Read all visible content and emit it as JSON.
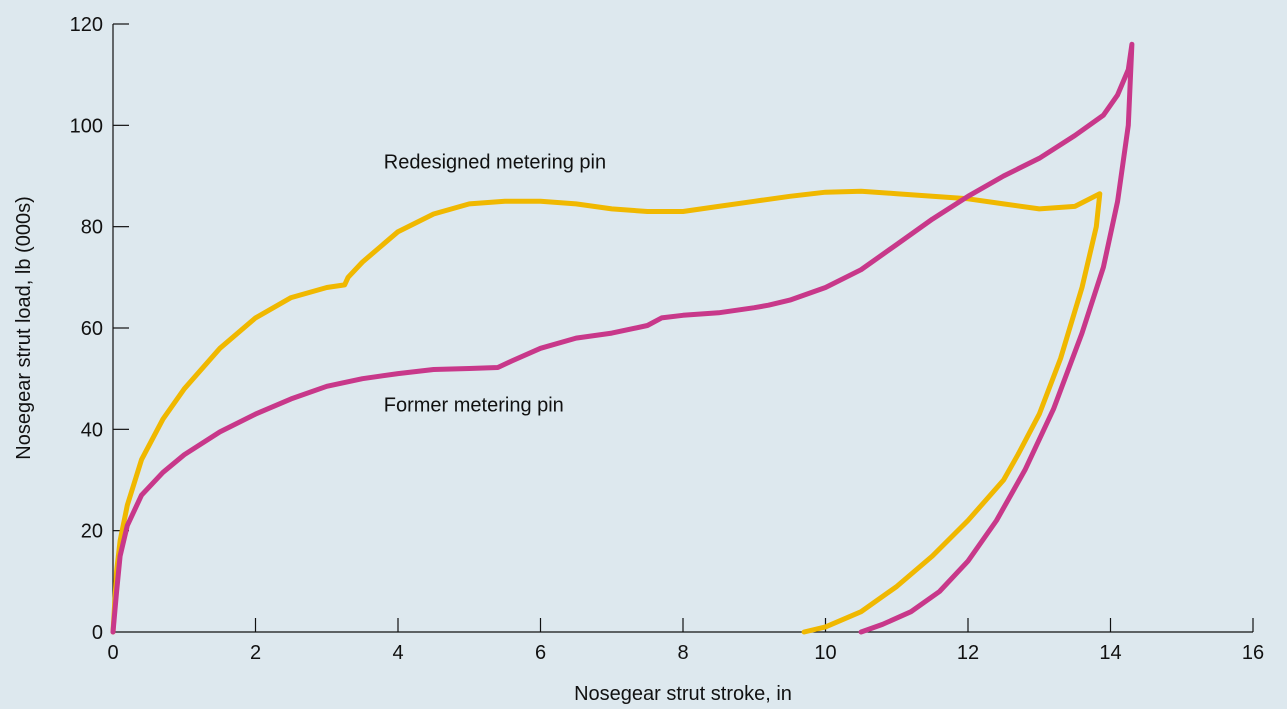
{
  "chart_data": {
    "type": "line",
    "title": "",
    "xlabel": "Nosegear strut stroke, in",
    "ylabel": "Nosegear strut load, lb (000s)",
    "xlim": [
      0,
      16
    ],
    "ylim": [
      0,
      120
    ],
    "xticks": [
      0,
      2,
      4,
      6,
      8,
      10,
      12,
      14,
      16
    ],
    "yticks": [
      0,
      20,
      40,
      60,
      80,
      100,
      120
    ],
    "grid": false,
    "legend": "none",
    "series": [
      {
        "name": "Redesigned metering pin",
        "color": "#f0b800",
        "x": [
          0,
          0.05,
          0.1,
          0.2,
          0.4,
          0.7,
          1.0,
          1.5,
          2.0,
          2.5,
          3.0,
          3.25,
          3.3,
          3.5,
          4.0,
          4.5,
          5.0,
          5.5,
          6.0,
          6.5,
          7.0,
          7.5,
          8.0,
          8.5,
          9.0,
          9.5,
          10.0,
          10.5,
          11.0,
          11.5,
          12.0,
          12.5,
          13.0,
          13.5,
          13.85,
          13.8,
          13.6,
          13.3,
          13.0,
          12.7,
          12.5,
          12.0,
          11.5,
          11.0,
          10.5,
          10.0,
          9.7
        ],
        "y": [
          0,
          12,
          18,
          25,
          34,
          42,
          48,
          56,
          62,
          66,
          68,
          68.5,
          70,
          73,
          79,
          82.5,
          84.5,
          85,
          85,
          84.5,
          83.5,
          83,
          83,
          84,
          85,
          86,
          86.8,
          87,
          86.5,
          86,
          85.5,
          84.5,
          83.5,
          84,
          86.5,
          80,
          68,
          54,
          43,
          35,
          30,
          22,
          15,
          9,
          4,
          1,
          0
        ]
      },
      {
        "name": "Former metering pin",
        "color": "#c8388a",
        "x": [
          0,
          0.05,
          0.1,
          0.2,
          0.4,
          0.7,
          1.0,
          1.5,
          2.0,
          2.5,
          3.0,
          3.5,
          4.0,
          4.5,
          5.0,
          5.4,
          5.6,
          6.0,
          6.5,
          7.0,
          7.5,
          7.7,
          8.0,
          8.5,
          9.0,
          9.2,
          9.5,
          10.0,
          10.5,
          11.0,
          11.5,
          12.0,
          12.5,
          13.0,
          13.5,
          13.9,
          14.1,
          14.25,
          14.3,
          14.25,
          14.1,
          13.9,
          13.6,
          13.2,
          12.8,
          12.4,
          12.0,
          11.6,
          11.2,
          10.8,
          10.5
        ],
        "y": [
          0,
          8,
          15,
          21,
          27,
          31.5,
          35,
          39.5,
          43,
          46,
          48.5,
          50,
          51,
          51.8,
          52,
          52.2,
          53.5,
          56,
          58,
          59,
          60.5,
          62,
          62.5,
          63,
          64,
          64.5,
          65.5,
          68,
          71.5,
          76.5,
          81.5,
          86,
          90,
          93.5,
          98,
          102,
          106,
          111,
          116,
          100,
          85,
          72,
          59,
          44,
          32,
          22,
          14,
          8,
          4,
          1.5,
          0
        ]
      }
    ],
    "annotations": [
      {
        "text": "Redesigned metering pin",
        "x": 3.8,
        "y": 91.5
      },
      {
        "text": "Former metering pin",
        "x": 3.8,
        "y": 43.5
      }
    ]
  }
}
